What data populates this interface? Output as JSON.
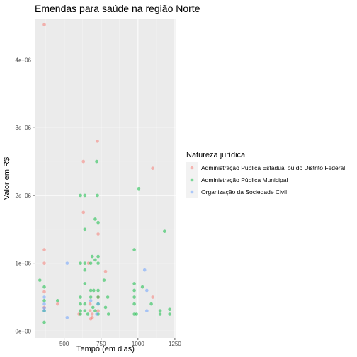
{
  "chart_data": {
    "type": "scatter",
    "title": "Emendas para saúde na região Norte",
    "xlabel": "Tempo (em dias)",
    "ylabel": "Valor em R$",
    "xlim": [
      300,
      1260
    ],
    "ylim": [
      -100000,
      4600000
    ],
    "x_ticks": [
      500,
      750,
      1000,
      1250
    ],
    "y_ticks": [
      0,
      1000000,
      2000000,
      3000000,
      4000000
    ],
    "x_tick_labels": [
      "500",
      "750",
      "1000",
      "1250"
    ],
    "y_tick_labels": [
      "0e+00",
      "1e+06",
      "2e+06",
      "3e+06",
      "4e+06"
    ],
    "grid": true,
    "legend": {
      "title": "Natureza jurídica",
      "position": "right"
    },
    "series": [
      {
        "name": "Administração Pública Estadual ou do Distrito Federal",
        "color": "#F8766D",
        "points": [
          [
            365,
            4520000
          ],
          [
            365,
            1200000
          ],
          [
            365,
            1000000
          ],
          [
            365,
            580000
          ],
          [
            365,
            350000
          ],
          [
            455,
            400000
          ],
          [
            600,
            250000
          ],
          [
            630,
            2500000
          ],
          [
            630,
            1750000
          ],
          [
            665,
            1000000
          ],
          [
            675,
            400000
          ],
          [
            675,
            300000
          ],
          [
            680,
            180000
          ],
          [
            690,
            250000
          ],
          [
            690,
            200000
          ],
          [
            725,
            2800000
          ],
          [
            730,
            1430000
          ],
          [
            730,
            500000
          ],
          [
            730,
            300000
          ],
          [
            780,
            880000
          ],
          [
            1100,
            2400000
          ],
          [
            1100,
            500000
          ]
        ]
      },
      {
        "name": "Administração Pública Municipal",
        "color": "#00BA38",
        "points": [
          [
            335,
            750000
          ],
          [
            365,
            650000
          ],
          [
            365,
            450000
          ],
          [
            365,
            300000
          ],
          [
            365,
            130000
          ],
          [
            455,
            450000
          ],
          [
            610,
            2000000
          ],
          [
            610,
            1000000
          ],
          [
            610,
            500000
          ],
          [
            610,
            400000
          ],
          [
            610,
            300000
          ],
          [
            610,
            250000
          ],
          [
            640,
            2000000
          ],
          [
            640,
            1500000
          ],
          [
            640,
            1000000
          ],
          [
            640,
            900000
          ],
          [
            640,
            700000
          ],
          [
            640,
            400000
          ],
          [
            640,
            300000
          ],
          [
            660,
            250000
          ],
          [
            680,
            1000000
          ],
          [
            680,
            600000
          ],
          [
            680,
            500000
          ],
          [
            690,
            1100000
          ],
          [
            695,
            350000
          ],
          [
            700,
            600000
          ],
          [
            710,
            1650000
          ],
          [
            710,
            1050000
          ],
          [
            710,
            300000
          ],
          [
            720,
            2500000
          ],
          [
            725,
            2000000
          ],
          [
            730,
            1600000
          ],
          [
            730,
            1100000
          ],
          [
            730,
            1000000
          ],
          [
            730,
            600000
          ],
          [
            730,
            500000
          ],
          [
            730,
            400000
          ],
          [
            730,
            250000
          ],
          [
            770,
            750000
          ],
          [
            780,
            350000
          ],
          [
            795,
            500000
          ],
          [
            800,
            250000
          ],
          [
            975,
            1200000
          ],
          [
            975,
            700000
          ],
          [
            975,
            600000
          ],
          [
            975,
            500000
          ],
          [
            975,
            400000
          ],
          [
            975,
            250000
          ],
          [
            990,
            250000
          ],
          [
            1005,
            2100000
          ],
          [
            1030,
            650000
          ],
          [
            1090,
            400000
          ],
          [
            1150,
            300000
          ],
          [
            1150,
            250000
          ],
          [
            1180,
            1470000
          ],
          [
            1215,
            320000
          ],
          [
            1215,
            250000
          ]
        ]
      },
      {
        "name": "Organização da Sociedade Civil",
        "color": "#619CFF",
        "points": [
          [
            365,
            500000
          ],
          [
            365,
            400000
          ],
          [
            365,
            340000
          ],
          [
            365,
            300000
          ],
          [
            520,
            1000000
          ],
          [
            520,
            200000
          ],
          [
            680,
            450000
          ],
          [
            720,
            250000
          ],
          [
            730,
            400000
          ],
          [
            1045,
            900000
          ],
          [
            1060,
            600000
          ],
          [
            1060,
            300000
          ]
        ]
      }
    ]
  }
}
